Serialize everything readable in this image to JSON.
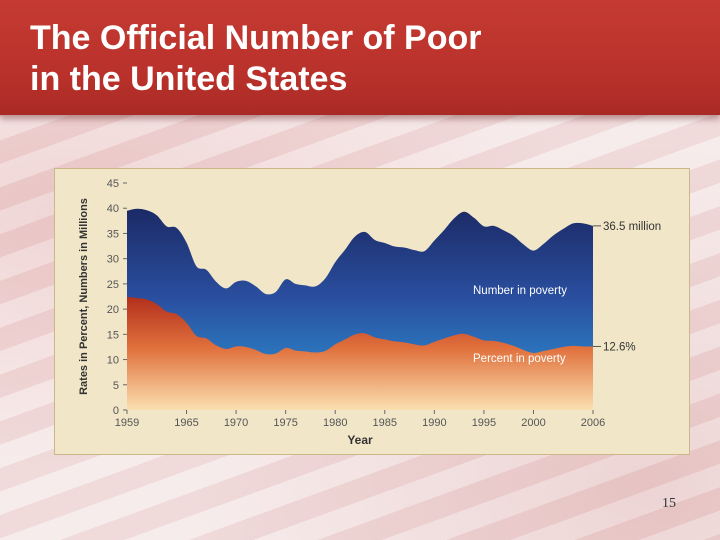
{
  "slide": {
    "title_line1": "The Official Number of Poor",
    "title_line2": "in the United States",
    "page_number": "15"
  },
  "chart_data": {
    "type": "area",
    "ylabel": "Rates in Percent, Numbers in Millions",
    "xlabel": "Year",
    "ylim": [
      0,
      45
    ],
    "xlim": [
      1959,
      2006
    ],
    "y_ticks": [
      "0",
      "5",
      "10",
      "15",
      "20",
      "25",
      "30",
      "35",
      "40",
      "45"
    ],
    "x_ticks": [
      "1959",
      "1965",
      "1970",
      "1975",
      "1980",
      "1985",
      "1990",
      "1995",
      "2000",
      "2006"
    ],
    "grid": false,
    "series": [
      {
        "name": "Number in poverty",
        "color_top": "#1f2f6e",
        "color_bottom": "#2a8fd0",
        "end_label": "36.5 million",
        "x": [
          1959,
          1960,
          1961,
          1962,
          1963,
          1964,
          1965,
          1966,
          1967,
          1968,
          1969,
          1970,
          1971,
          1972,
          1973,
          1974,
          1975,
          1976,
          1977,
          1978,
          1979,
          1980,
          1981,
          1982,
          1983,
          1984,
          1985,
          1986,
          1987,
          1988,
          1989,
          1990,
          1991,
          1992,
          1993,
          1994,
          1995,
          1996,
          1997,
          1998,
          1999,
          2000,
          2001,
          2002,
          2003,
          2004,
          2005,
          2006
        ],
        "values": [
          39.5,
          39.9,
          39.6,
          38.6,
          36.4,
          36.1,
          33.2,
          28.5,
          27.8,
          25.4,
          24.1,
          25.4,
          25.6,
          24.5,
          23.0,
          23.4,
          25.9,
          25.0,
          24.7,
          24.5,
          26.1,
          29.3,
          31.8,
          34.4,
          35.3,
          33.7,
          33.1,
          32.4,
          32.2,
          31.7,
          31.5,
          33.6,
          35.7,
          38.0,
          39.3,
          38.1,
          36.4,
          36.5,
          35.6,
          34.5,
          32.8,
          31.6,
          32.9,
          34.6,
          35.9,
          37.0,
          37.0,
          36.5
        ]
      },
      {
        "name": "Percent in poverty",
        "color_top": "#b8321f",
        "color_bottom": "#f7c98c",
        "end_label": "12.6%",
        "x": [
          1959,
          1960,
          1961,
          1962,
          1963,
          1964,
          1965,
          1966,
          1967,
          1968,
          1969,
          1970,
          1971,
          1972,
          1973,
          1974,
          1975,
          1976,
          1977,
          1978,
          1979,
          1980,
          1981,
          1982,
          1983,
          1984,
          1985,
          1986,
          1987,
          1988,
          1989,
          1990,
          1991,
          1992,
          1993,
          1994,
          1995,
          1996,
          1997,
          1998,
          1999,
          2000,
          2001,
          2002,
          2003,
          2004,
          2005,
          2006
        ],
        "values": [
          22.4,
          22.2,
          21.9,
          21.0,
          19.5,
          19.0,
          17.3,
          14.7,
          14.2,
          12.8,
          12.1,
          12.6,
          12.5,
          11.9,
          11.1,
          11.2,
          12.3,
          11.8,
          11.6,
          11.4,
          11.7,
          13.0,
          14.0,
          15.0,
          15.2,
          14.4,
          14.0,
          13.6,
          13.4,
          13.0,
          12.8,
          13.5,
          14.2,
          14.8,
          15.1,
          14.5,
          13.8,
          13.7,
          13.3,
          12.7,
          11.9,
          11.3,
          11.7,
          12.1,
          12.5,
          12.7,
          12.6,
          12.6
        ]
      }
    ]
  }
}
